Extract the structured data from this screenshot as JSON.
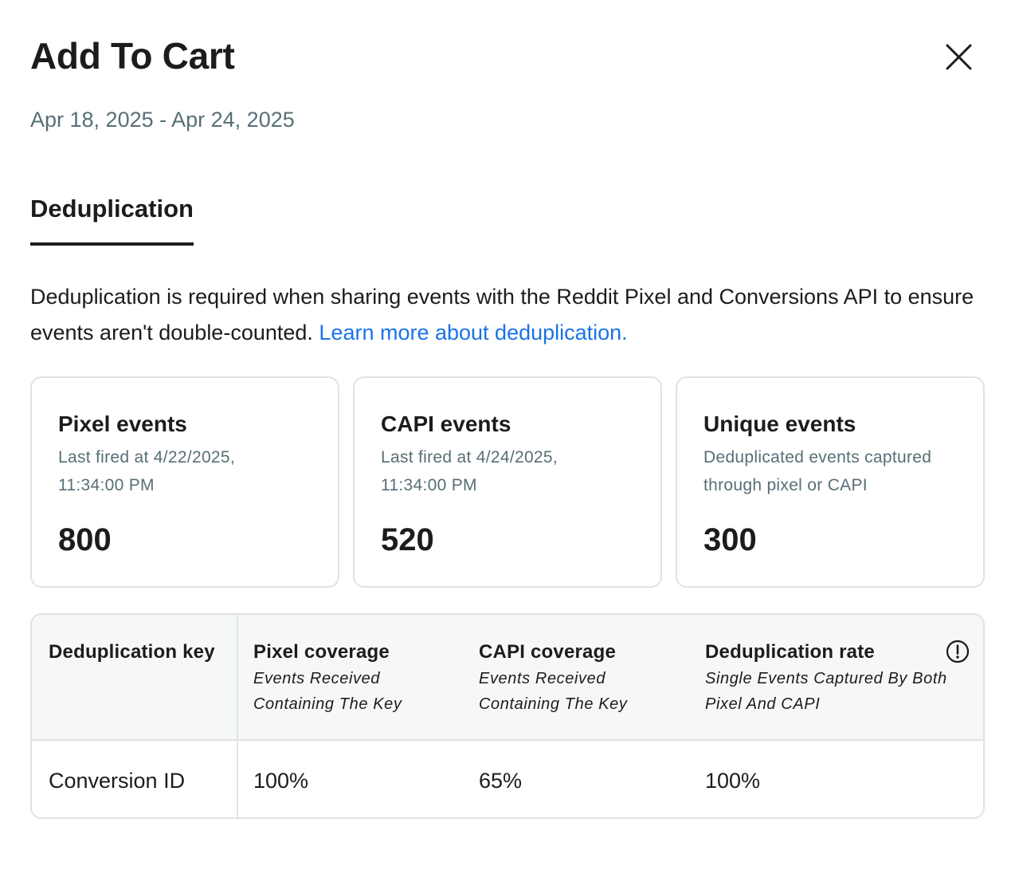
{
  "header": {
    "title": "Add To Cart",
    "date_range": "Apr 18, 2025 - Apr 24, 2025"
  },
  "tabs": [
    {
      "label": "Deduplication",
      "active": true
    }
  ],
  "description": {
    "text": "Deduplication is required when sharing events with the Reddit Pixel and Conversions API to ensure events aren't double-counted. ",
    "link_text": "Learn more about deduplication."
  },
  "cards": [
    {
      "title": "Pixel events",
      "subtitle_line1": "Last fired at 4/22/2025,",
      "subtitle_line2": "11:34:00 PM",
      "value": "800"
    },
    {
      "title": "CAPI events",
      "subtitle_line1": "Last fired at 4/24/2025,",
      "subtitle_line2": "11:34:00 PM",
      "value": "520"
    },
    {
      "title": "Unique events",
      "subtitle_line1": "Deduplicated events captured",
      "subtitle_line2": "through pixel or CAPI",
      "value": "300"
    }
  ],
  "table": {
    "columns": [
      {
        "title": "Deduplication key",
        "subtitle_line1": "",
        "subtitle_line2": ""
      },
      {
        "title": "Pixel coverage",
        "subtitle_line1": "Events Received",
        "subtitle_line2": "Containing The Key"
      },
      {
        "title": "CAPI coverage",
        "subtitle_line1": "Events Received",
        "subtitle_line2": "Containing The Key"
      },
      {
        "title": "Deduplication rate",
        "subtitle_line1": "Single Events Captured By Both",
        "subtitle_line2": "Pixel And CAPI"
      }
    ],
    "rows": [
      {
        "key": "Conversion ID",
        "pixel_coverage": "100%",
        "capi_coverage": "65%",
        "dedup_rate": "100%"
      }
    ]
  },
  "icons": {
    "close": "close-icon",
    "info": "info-icon"
  },
  "colors": {
    "text": "#1c1c1c",
    "muted": "#576f76",
    "link": "#1a73e8",
    "border": "#dfe3e6",
    "table_header_bg": "#f5f7f8"
  }
}
